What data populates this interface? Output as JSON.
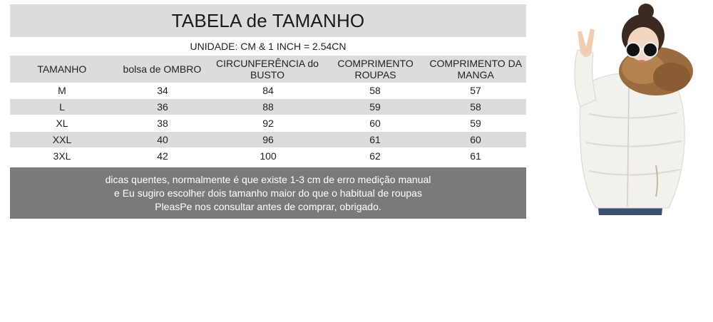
{
  "title": "TABELA de TAMANHO",
  "unit": "UNIDADE: CM & 1 INCH = 2.54CN",
  "headers": [
    "TAMANHO",
    "bolsa de OMBRO",
    "CIRCUNFERÊNCIA do BUSTO",
    "COMPRIMENTO ROUPAS",
    "COMPRIMENTO DA MANGA"
  ],
  "rows": [
    [
      "M",
      "34",
      "84",
      "58",
      "57"
    ],
    [
      "L",
      "36",
      "88",
      "59",
      "58"
    ],
    [
      "XL",
      "38",
      "92",
      "60",
      "59"
    ],
    [
      "XXL",
      "40",
      "96",
      "61",
      "60"
    ],
    [
      "3XL",
      "42",
      "100",
      "62",
      "61"
    ]
  ],
  "note_lines": [
    "dicas quentes, normalmente é que existe 1-3 cm de erro medição manual",
    "e Eu sugiro escolher dois tamanho maior do que o habitual de roupas",
    "PleasPe nos consultar antes de comprar, obrigado."
  ],
  "colors": {
    "header_gray": "#dcdcdc",
    "note_gray": "#7a7a7a",
    "jacket": "#f2f1ec",
    "fur": "#9a6b3f"
  },
  "icons": {
    "photo": "model-photo"
  }
}
